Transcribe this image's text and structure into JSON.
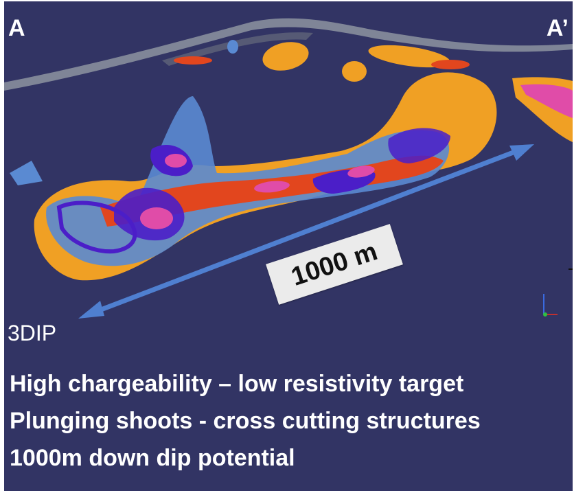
{
  "section": {
    "start_label": "A",
    "end_label": "A’"
  },
  "scale": {
    "label": "1000 m"
  },
  "method": "3DIP",
  "bullets": [
    "High chargeability – low resistivity target",
    "Plunging shoots - cross cutting structures",
    "1000m down dip potential"
  ],
  "colors": {
    "background": "#323464",
    "orange_body": "#f0a024",
    "red_core": "#e2461e",
    "blue_shell": "#5a8ad2",
    "violet_shell": "#4b1ec8",
    "magenta_core": "#e04ca8",
    "arrow": "#4f7fd0"
  },
  "icons": [
    "axis-triad-icon",
    "scale-arrow-icon"
  ]
}
